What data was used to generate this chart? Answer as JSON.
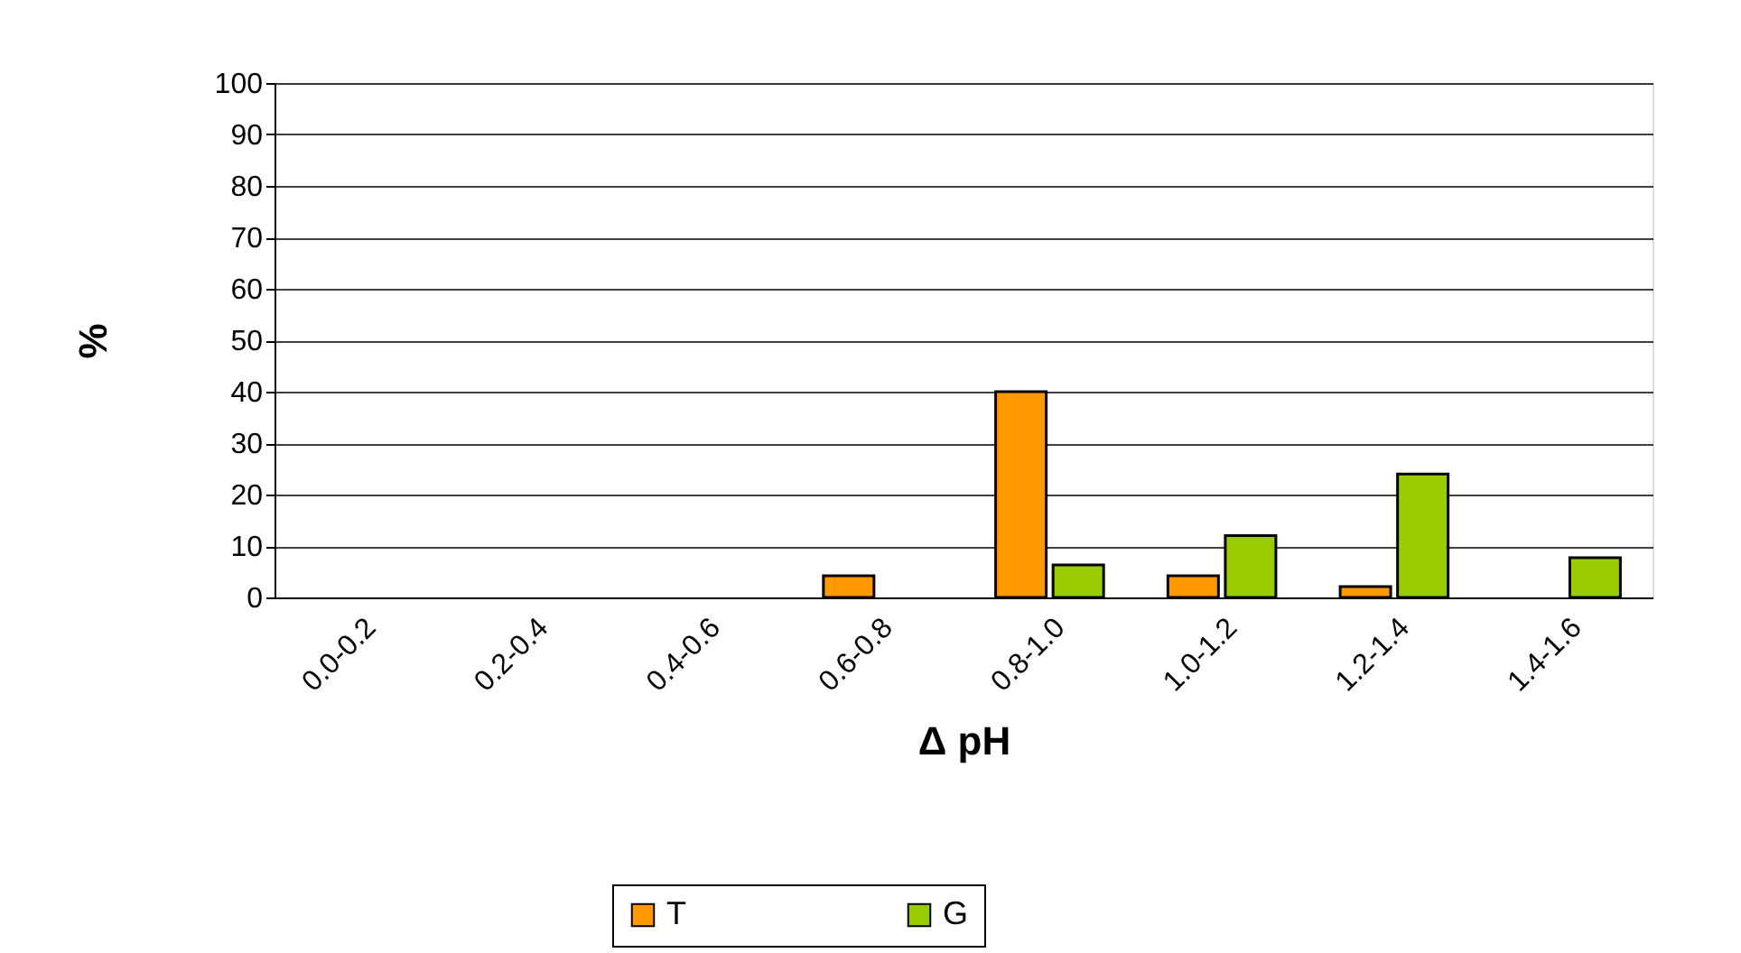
{
  "chart_data": {
    "type": "bar",
    "xlabel": "Δ pH",
    "ylabel": "%",
    "categories": [
      "0.0-0.2",
      "0.2-0.4",
      "0.4-0.6",
      "0.6-0.8",
      "0.8-1.0",
      "1.0-1.2",
      "1.2-1.4",
      "1.4-1.6"
    ],
    "series": [
      {
        "name": "T",
        "color": "#ff9900",
        "values": [
          null,
          null,
          null,
          4.2,
          40,
          4.2,
          2.1,
          null
        ]
      },
      {
        "name": "G",
        "color": "#99cc00",
        "values": [
          null,
          null,
          null,
          null,
          6.3,
          12,
          24,
          7.7
        ]
      }
    ],
    "ylim": [
      0,
      100
    ],
    "yticks": [
      0,
      10,
      20,
      30,
      40,
      50,
      60,
      70,
      80,
      90,
      100
    ],
    "grid": "y",
    "legend": "bottom"
  }
}
